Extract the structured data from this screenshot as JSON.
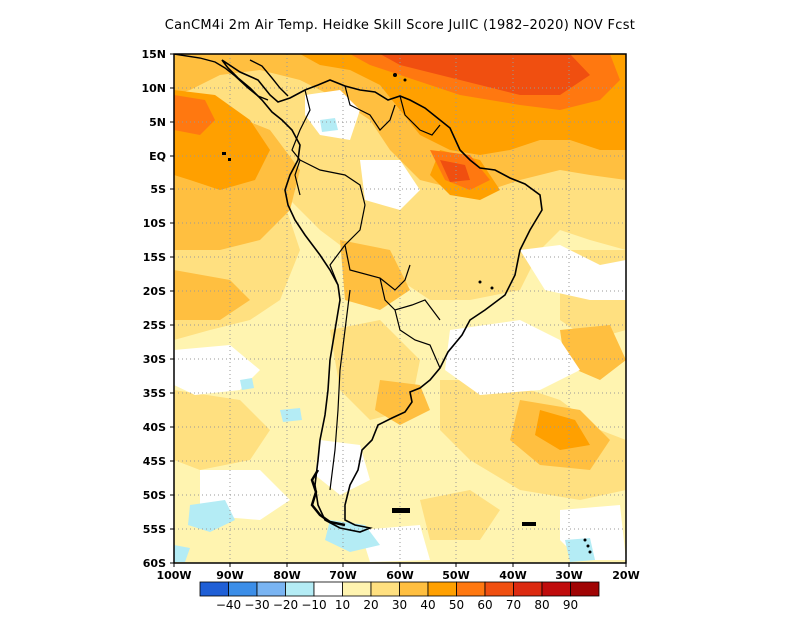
{
  "title": "CanCM4i  2m Air Temp. Heidke Skill Score JulIC (1982–2020) NOV Fcst",
  "lat_labels": [
    "15N",
    "10N",
    "5N",
    "EQ",
    "5S",
    "10S",
    "15S",
    "20S",
    "25S",
    "30S",
    "35S",
    "40S",
    "45S",
    "50S",
    "55S",
    "60S"
  ],
  "lon_labels": [
    "100W",
    "90W",
    "80W",
    "70W",
    "60W",
    "50W",
    "40W",
    "30W",
    "20W"
  ],
  "colorbar": {
    "labels": [
      "-40",
      "-30",
      "-20",
      "-10",
      "10",
      "20",
      "30",
      "40",
      "50",
      "60",
      "70",
      "80",
      "90"
    ],
    "colors": [
      "#1f5fd6",
      "#3c8ee8",
      "#79b4f2",
      "#b4ecf5",
      "#ffffff",
      "#fff4b0",
      "#ffe080",
      "#ffbf40",
      "#ffa000",
      "#ff7810",
      "#f04f10",
      "#dc2a10",
      "#c00c0c",
      "#a00404"
    ]
  },
  "colors": {
    "coast": "#000000",
    "grid": "#999999"
  }
}
